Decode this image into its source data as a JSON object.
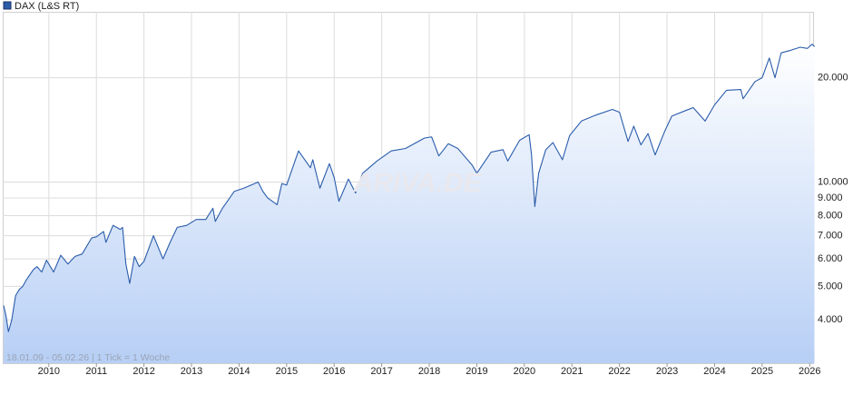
{
  "chart_data": {
    "type": "line",
    "legend": "DAX (L&S RT)",
    "watermark": "ARIVA.DE",
    "footer": "18.01.09 - 05.02.26 | 1 Tick = 1 Woche",
    "log_scale": true,
    "grid": true,
    "xlim": [
      2009.03,
      2026.09
    ],
    "xticks": [
      2010,
      2011,
      2012,
      2013,
      2014,
      2015,
      2016,
      2017,
      2018,
      2019,
      2020,
      2021,
      2022,
      2023,
      2024,
      2025,
      2026
    ],
    "ylim": [
      3000,
      31000
    ],
    "yticks": [
      {
        "value": 4000,
        "label": "4.000"
      },
      {
        "value": 5000,
        "label": "5.000"
      },
      {
        "value": 6000,
        "label": "6.000"
      },
      {
        "value": 7000,
        "label": "7.000"
      },
      {
        "value": 8000,
        "label": "8.000"
      },
      {
        "value": 9000,
        "label": "9.000"
      },
      {
        "value": 10000,
        "label": "10.000"
      },
      {
        "value": 20000,
        "label": "20.000"
      }
    ],
    "series": [
      {
        "name": "DAX (L&S RT)",
        "color": "#2a5caa",
        "x": [
          2009.05,
          2009.1,
          2009.15,
          2009.22,
          2009.3,
          2009.38,
          2009.45,
          2009.52,
          2009.6,
          2009.68,
          2009.75,
          2009.85,
          2009.95,
          2010.1,
          2010.25,
          2010.4,
          2010.55,
          2010.7,
          2010.9,
          2011.0,
          2011.15,
          2011.2,
          2011.35,
          2011.5,
          2011.55,
          2011.62,
          2011.7,
          2011.8,
          2011.9,
          2012.0,
          2012.2,
          2012.4,
          2012.55,
          2012.7,
          2012.9,
          2013.1,
          2013.3,
          2013.45,
          2013.5,
          2013.65,
          2013.9,
          2014.1,
          2014.4,
          2014.5,
          2014.6,
          2014.8,
          2014.9,
          2015.0,
          2015.25,
          2015.5,
          2015.55,
          2015.7,
          2015.9,
          2016.0,
          2016.1,
          2016.3,
          2016.45,
          2016.6,
          2016.9,
          2017.2,
          2017.5,
          2017.9,
          2018.05,
          2018.2,
          2018.4,
          2018.6,
          2018.9,
          2019.0,
          2019.3,
          2019.55,
          2019.65,
          2019.9,
          2020.1,
          2020.15,
          2020.22,
          2020.3,
          2020.45,
          2020.6,
          2020.8,
          2020.95,
          2021.2,
          2021.5,
          2021.85,
          2022.0,
          2022.18,
          2022.3,
          2022.45,
          2022.6,
          2022.75,
          2022.95,
          2023.1,
          2023.4,
          2023.55,
          2023.8,
          2024.0,
          2024.25,
          2024.55,
          2024.6,
          2024.85,
          2025.0,
          2025.15,
          2025.27,
          2025.4,
          2025.6,
          2025.8,
          2025.95,
          2026.05,
          2026.1
        ],
        "values": [
          4400,
          4100,
          3700,
          4000,
          4700,
          4900,
          5000,
          5200,
          5400,
          5600,
          5700,
          5500,
          5950,
          5500,
          6150,
          5800,
          6100,
          6200,
          6900,
          6950,
          7200,
          6700,
          7500,
          7300,
          7400,
          5800,
          5100,
          6100,
          5700,
          5900,
          7000,
          6000,
          6700,
          7400,
          7500,
          7800,
          7800,
          8400,
          7700,
          8400,
          9400,
          9600,
          10000,
          9400,
          9000,
          8600,
          9900,
          9800,
          12300,
          11000,
          11600,
          9600,
          11300,
          10300,
          8800,
          10200,
          9300,
          10600,
          11500,
          12300,
          12500,
          13400,
          13500,
          11900,
          12900,
          12500,
          11200,
          10600,
          12200,
          12400,
          11500,
          13200,
          13700,
          12000,
          8500,
          10600,
          12400,
          13000,
          11600,
          13600,
          15000,
          15600,
          16200,
          15900,
          13100,
          14500,
          12800,
          13800,
          11975,
          14000,
          15500,
          16100,
          16400,
          15000,
          16700,
          18400,
          18500,
          17400,
          19500,
          20000,
          22800,
          20000,
          23600,
          24000,
          24500,
          24300,
          25000,
          24600
        ]
      }
    ]
  }
}
